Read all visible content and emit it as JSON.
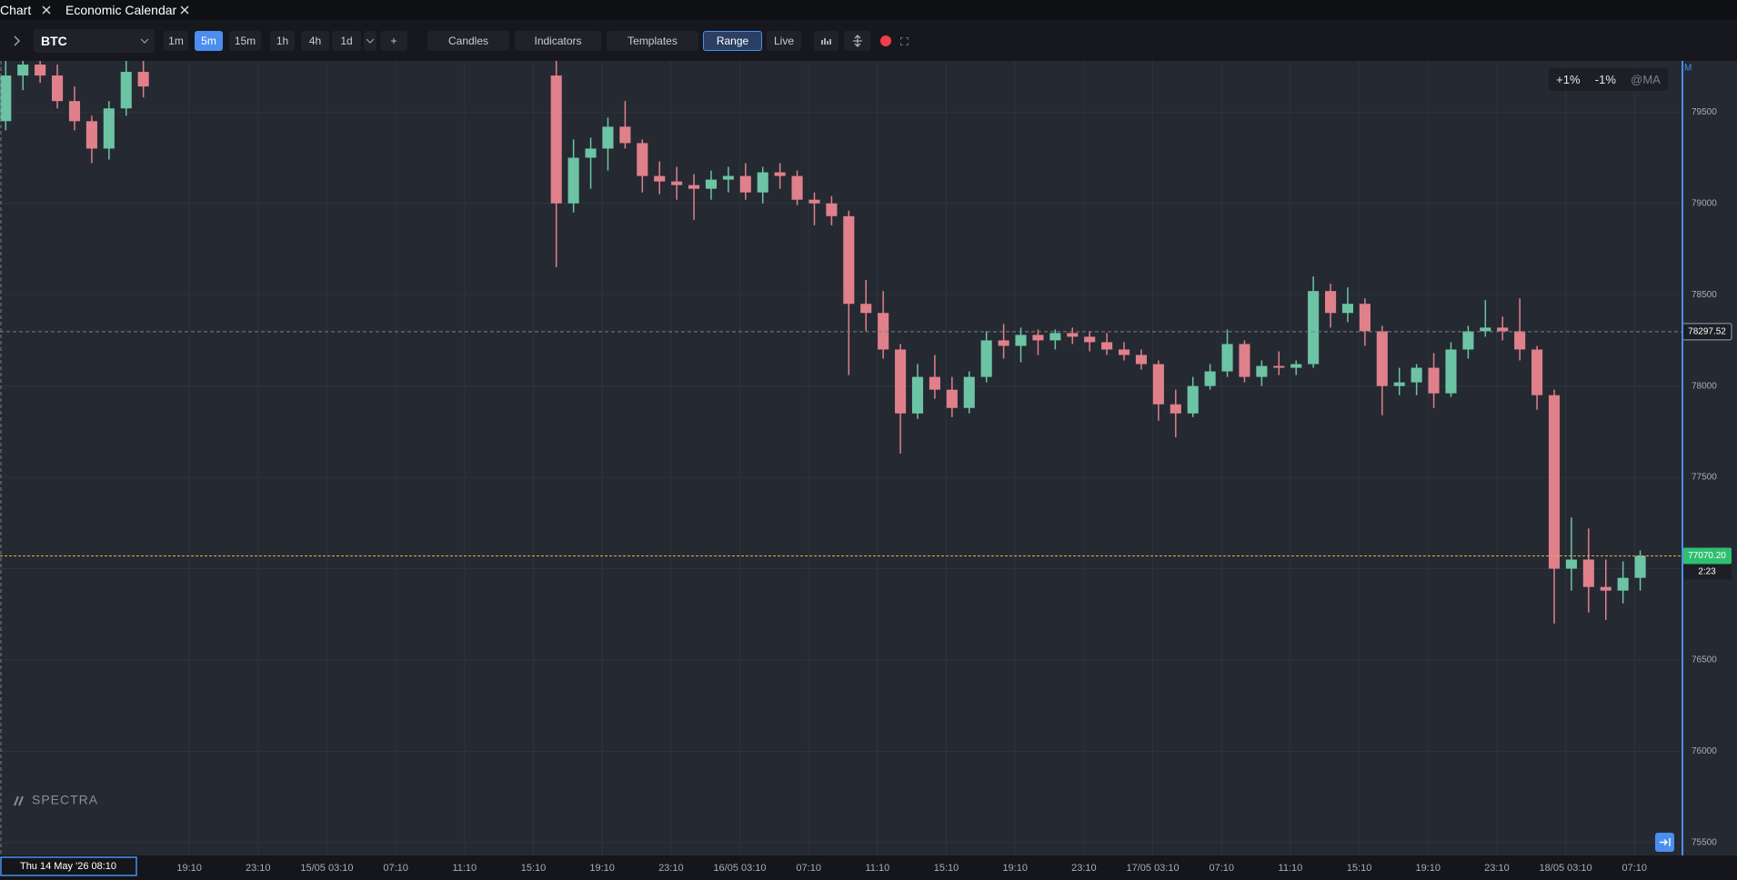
{
  "tabs": [
    {
      "label": "Chart"
    },
    {
      "label": "Economic Calendar"
    }
  ],
  "toolbar": {
    "symbol": "BTC",
    "intervals": [
      "1m",
      "5m",
      "15m",
      "1h",
      "4h",
      "1d"
    ],
    "active_interval": "5m",
    "add": "+",
    "buttons": [
      "Candles",
      "Indicators",
      "Templates",
      "Range",
      "Live"
    ],
    "active_button": "Range"
  },
  "overlay": {
    "buttons": [
      "+1%",
      "-1%",
      "@MA"
    ]
  },
  "watermark": "SPECTRA",
  "price_axis_mode": "M",
  "countdown": "2:23",
  "chart_data": {
    "type": "candlestick",
    "x": [
      510,
      570,
      630,
      690,
      750,
      810,
      870,
      930,
      990,
      2430,
      2490,
      2550,
      2610,
      2670,
      2730,
      2790,
      2850,
      2910,
      2970,
      3030,
      3090,
      3150,
      3210,
      3270,
      3330,
      3390,
      3450,
      3510,
      3570,
      3630,
      3690,
      3750,
      3810,
      3870,
      3930,
      3990,
      4050,
      4110,
      4170,
      4230,
      4290,
      4350,
      4410,
      4470,
      4530,
      4590,
      4650,
      4710,
      4770,
      4830,
      4890,
      4950,
      5010,
      5070,
      5130,
      5190,
      5250,
      5310,
      5370,
      5430,
      5490,
      5550,
      5610,
      5670,
      5730,
      5790,
      5850,
      5910,
      5970,
      6030,
      6090,
      6150,
      6210
    ],
    "open": [
      79450,
      79700,
      79760,
      79700,
      79560,
      79450,
      79300,
      79520,
      79720,
      79700,
      79000,
      79250,
      79300,
      79420,
      79330,
      79150,
      79120,
      79100,
      79080,
      79130,
      79150,
      79060,
      79170,
      79150,
      79020,
      79000,
      78930,
      78450,
      78400,
      78200,
      77850,
      78050,
      77980,
      77880,
      78050,
      78250,
      78220,
      78280,
      78250,
      78290,
      78270,
      78240,
      78200,
      78170,
      78120,
      77900,
      77850,
      78000,
      78080,
      78230,
      78050,
      78110,
      78100,
      78120,
      78520,
      78400,
      78450,
      78300,
      78000,
      78020,
      78100,
      77960,
      78200,
      78300,
      78320,
      78300,
      78200,
      77950,
      77000,
      77050,
      76900,
      76880,
      76950
    ],
    "high": [
      79780,
      79800,
      79800,
      79760,
      79640,
      79480,
      79560,
      79780,
      79800,
      79780,
      79350,
      79360,
      79470,
      79560,
      79350,
      79230,
      79200,
      79160,
      79180,
      79200,
      79220,
      79200,
      79220,
      79180,
      79060,
      79040,
      78960,
      78580,
      78520,
      78230,
      78120,
      78170,
      78050,
      78080,
      78300,
      78340,
      78320,
      78310,
      78310,
      78320,
      78300,
      78290,
      78240,
      78200,
      78140,
      77980,
      78050,
      78120,
      78310,
      78250,
      78140,
      78190,
      78140,
      78600,
      78560,
      78540,
      78480,
      78330,
      78100,
      78120,
      78180,
      78240,
      78330,
      78470,
      78380,
      78480,
      78220,
      77980,
      77280,
      77220,
      77050,
      77040,
      77100
    ],
    "low": [
      79400,
      79620,
      79660,
      79520,
      79400,
      79220,
      79240,
      79480,
      79580,
      78650,
      78950,
      79080,
      79180,
      79300,
      79060,
      79050,
      79020,
      78910,
      79020,
      79060,
      79020,
      79000,
      79080,
      78990,
      78880,
      78880,
      78060,
      78300,
      78150,
      77630,
      77820,
      77930,
      77830,
      77850,
      78020,
      78150,
      78130,
      78170,
      78200,
      78230,
      78190,
      78170,
      78140,
      78090,
      77810,
      77720,
      77830,
      77980,
      78050,
      78020,
      78000,
      78060,
      78060,
      78100,
      78320,
      78350,
      78220,
      77840,
      77950,
      77950,
      77880,
      77940,
      78150,
      78270,
      78250,
      78140,
      77870,
      76700,
      76880,
      76760,
      76720,
      76810,
      76880
    ],
    "close": [
      79700,
      79760,
      79700,
      79560,
      79450,
      79300,
      79520,
      79720,
      79640,
      79000,
      79250,
      79300,
      79420,
      79330,
      79150,
      79120,
      79100,
      79080,
      79130,
      79150,
      79060,
      79170,
      79150,
      79020,
      79000,
      78930,
      78450,
      78400,
      78200,
      77850,
      78050,
      77980,
      77880,
      78050,
      78250,
      78220,
      78280,
      78250,
      78290,
      78270,
      78240,
      78200,
      78170,
      78120,
      77900,
      77850,
      78000,
      78080,
      78230,
      78050,
      78110,
      78100,
      78120,
      78520,
      78400,
      78450,
      78300,
      78000,
      78020,
      78100,
      77960,
      78200,
      78300,
      78320,
      78300,
      78200,
      77950,
      77000,
      77050,
      76900,
      76880,
      76950,
      77070.2
    ],
    "up_color": "#6cc4a4",
    "down_color": "#e0808a",
    "xlim": [
      490,
      6354
    ],
    "ylim": [
      75430,
      79780
    ],
    "xticks": [
      {
        "value": 1150,
        "label": "19:10"
      },
      {
        "value": 1390,
        "label": "23:10"
      },
      {
        "value": 1630,
        "label": "15/05 03:10"
      },
      {
        "value": 1870,
        "label": "07:10"
      },
      {
        "value": 2110,
        "label": "11:10"
      },
      {
        "value": 2350,
        "label": "15:10"
      },
      {
        "value": 2590,
        "label": "19:10"
      },
      {
        "value": 2830,
        "label": "23:10"
      },
      {
        "value": 3070,
        "label": "16/05 03:10"
      },
      {
        "value": 3310,
        "label": "07:10"
      },
      {
        "value": 3550,
        "label": "11:10"
      },
      {
        "value": 3790,
        "label": "15:10"
      },
      {
        "value": 4030,
        "label": "19:10"
      },
      {
        "value": 4270,
        "label": "23:10"
      },
      {
        "value": 4510,
        "label": "17/05 03:10"
      },
      {
        "value": 4750,
        "label": "07:10"
      },
      {
        "value": 4990,
        "label": "11:10"
      },
      {
        "value": 5230,
        "label": "15:10"
      },
      {
        "value": 5470,
        "label": "19:10"
      },
      {
        "value": 5710,
        "label": "23:10"
      },
      {
        "value": 5950,
        "label": "18/05 03:10"
      },
      {
        "value": 6190,
        "label": "07:10"
      }
    ],
    "yticks": [
      75500,
      76000,
      76500,
      77000,
      77500,
      78000,
      78500,
      79000,
      79500
    ],
    "grid": true,
    "last_price": {
      "value": 77070.2,
      "label": "77070.20"
    },
    "last_price_color": "#2fbf71",
    "crosshair": {
      "price": 78297.52,
      "time": {
        "value": 490,
        "label": "Thu 14 May '26 08:10"
      }
    }
  }
}
